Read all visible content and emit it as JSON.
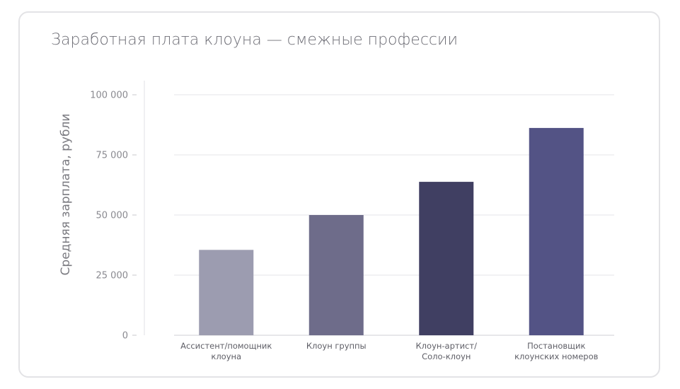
{
  "chart_data": {
    "type": "bar",
    "title": "Заработная плата клоуна — смежные профессии",
    "xlabel": "",
    "ylabel": "Средняя зарплата, рубли",
    "categories": [
      [
        "Ассистент/помощник",
        "клоуна"
      ],
      [
        "Клоун группы"
      ],
      [
        "Клоун-артист/",
        "Соло-клоун"
      ],
      [
        "Постановщик",
        "клоунских номеров"
      ]
    ],
    "values": [
      35500,
      50000,
      63800,
      86200
    ],
    "colors": [
      "#9c9cb0",
      "#6e6c8a",
      "#403f62",
      "#535385"
    ],
    "ylim": [
      0,
      100000
    ],
    "yticks": [
      0,
      25000,
      50000,
      75000,
      100000
    ],
    "ytick_labels": [
      "0",
      "25 000",
      "50 000",
      "75 000",
      "100 000"
    ],
    "grid": true,
    "legend": "none"
  }
}
